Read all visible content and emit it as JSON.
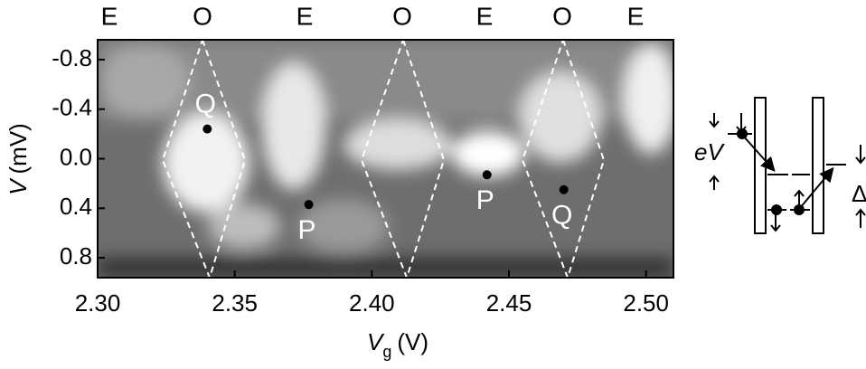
{
  "chart_data": {
    "type": "scatter",
    "top_labels": [
      "E",
      "O",
      "E",
      "O",
      "E",
      "O",
      "E"
    ],
    "x_label": {
      "symbol": "V",
      "subscript": "g",
      "unit": "(V)"
    },
    "y_label": {
      "symbol": "V",
      "unit": "(mV)"
    },
    "xlim": [
      2.3,
      2.51
    ],
    "ylim": [
      0.96,
      -0.96
    ],
    "xticks": [
      {
        "value": 2.3,
        "label": "2.30"
      },
      2.35,
      {
        "value": 2.4,
        "label": "2.40"
      },
      2.45,
      {
        "value": 2.5,
        "label": "2.50"
      }
    ],
    "yticks": [
      -0.8,
      -0.4,
      {
        "value": 0,
        "label": "0.0"
      },
      0.4,
      0.8
    ],
    "series": [
      {
        "color": "#000000",
        "x": [
          2.34,
          2.377,
          2.442,
          2.47
        ],
        "values": [
          -0.24,
          0.37,
          0.13,
          0.25
        ],
        "point_labels": [
          "Q",
          "P",
          "P",
          "Q"
        ]
      }
    ],
    "schematic": {
      "bias_label": "eV",
      "gap_label": "Δ"
    }
  }
}
